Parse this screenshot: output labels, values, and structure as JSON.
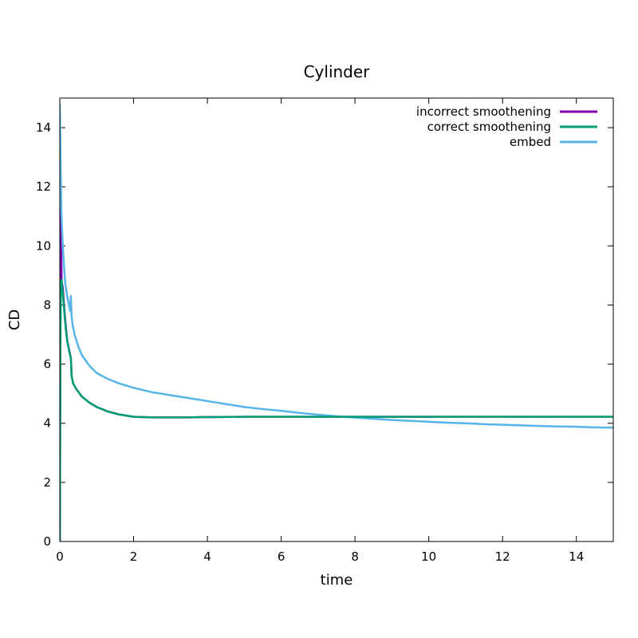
{
  "chart_data": {
    "type": "line",
    "title": "Cylinder",
    "xlabel": "time",
    "ylabel": "CD",
    "xlim": [
      0,
      15
    ],
    "ylim": [
      0,
      15
    ],
    "xticks": [
      0,
      2,
      4,
      6,
      8,
      10,
      12,
      14
    ],
    "yticks": [
      0,
      2,
      4,
      6,
      8,
      10,
      12,
      14
    ],
    "grid": false,
    "legend_position": "top-right",
    "series": [
      {
        "name": "incorrect smoothening",
        "color": "#8000b0",
        "x": [
          0,
          0.01,
          0.02,
          0.03,
          0.05,
          0.08,
          0.12,
          0.16,
          0.2,
          0.25,
          0.3,
          0.32,
          0.36,
          0.45,
          0.6,
          0.8,
          1.0,
          1.3,
          1.6,
          2.0,
          2.5,
          3.0,
          3.5,
          4.0,
          5.0,
          6.0,
          7.0,
          8.0,
          9.0,
          10.0,
          11.0,
          12.0,
          13.0,
          14.0,
          15.0
        ],
        "y": [
          0,
          5.0,
          11.8,
          10.4,
          8.8,
          8.6,
          7.9,
          7.3,
          6.8,
          6.5,
          6.2,
          5.6,
          5.35,
          5.15,
          4.9,
          4.7,
          4.55,
          4.4,
          4.3,
          4.22,
          4.2,
          4.2,
          4.2,
          4.21,
          4.22,
          4.22,
          4.22,
          4.22,
          4.22,
          4.22,
          4.22,
          4.22,
          4.22,
          4.22,
          4.22
        ]
      },
      {
        "name": "correct smoothening",
        "color": "#009e73",
        "x": [
          0,
          0.01,
          0.02,
          0.03,
          0.05,
          0.08,
          0.12,
          0.16,
          0.2,
          0.25,
          0.3,
          0.32,
          0.36,
          0.45,
          0.6,
          0.8,
          1.0,
          1.3,
          1.6,
          2.0,
          2.5,
          3.0,
          3.5,
          4.0,
          5.0,
          6.0,
          7.0,
          8.0,
          9.0,
          10.0,
          11.0,
          12.0,
          13.0,
          14.0,
          15.0
        ],
        "y": [
          0,
          4.0,
          7.5,
          8.8,
          8.85,
          8.4,
          7.8,
          7.2,
          6.8,
          6.45,
          6.2,
          5.6,
          5.35,
          5.15,
          4.9,
          4.7,
          4.55,
          4.4,
          4.3,
          4.22,
          4.2,
          4.2,
          4.2,
          4.21,
          4.22,
          4.22,
          4.22,
          4.22,
          4.22,
          4.22,
          4.22,
          4.22,
          4.22,
          4.22,
          4.22
        ]
      },
      {
        "name": "embed",
        "color": "#56b4e9",
        "x": [
          0,
          0.02,
          0.04,
          0.06,
          0.08,
          0.1,
          0.12,
          0.15,
          0.2,
          0.25,
          0.28,
          0.3,
          0.32,
          0.35,
          0.4,
          0.5,
          0.6,
          0.8,
          1.0,
          1.3,
          1.6,
          2.0,
          2.5,
          3.0,
          3.5,
          4.0,
          4.5,
          5.0,
          5.5,
          6.0,
          6.5,
          7.0,
          7.5,
          8.0,
          8.5,
          9.0,
          9.5,
          10.0,
          10.5,
          11.0,
          11.5,
          12.0,
          12.5,
          13.0,
          13.5,
          14.0,
          14.5,
          15.0
        ],
        "y": [
          14.8,
          13.0,
          11.2,
          10.6,
          10.0,
          9.6,
          9.2,
          8.7,
          8.3,
          8.0,
          7.8,
          8.3,
          7.6,
          7.3,
          7.0,
          6.6,
          6.3,
          5.95,
          5.7,
          5.5,
          5.35,
          5.2,
          5.05,
          4.95,
          4.85,
          4.75,
          4.65,
          4.55,
          4.48,
          4.42,
          4.35,
          4.29,
          4.24,
          4.19,
          4.15,
          4.11,
          4.08,
          4.05,
          4.02,
          4.0,
          3.97,
          3.95,
          3.93,
          3.91,
          3.89,
          3.88,
          3.86,
          3.85
        ]
      }
    ]
  }
}
